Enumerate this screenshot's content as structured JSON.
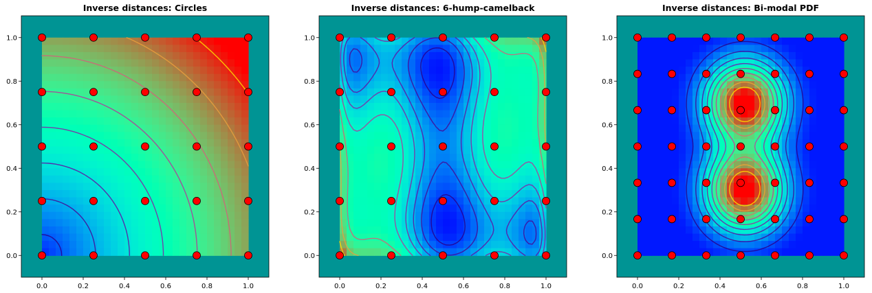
{
  "figure": {
    "background": "#ffffff",
    "frame_color": "#009494",
    "point_color": "#ff0000"
  },
  "chart_data": [
    {
      "type": "heatmap",
      "title": "Inverse distances: Circles",
      "xlim": [
        -0.1,
        1.1
      ],
      "ylim": [
        -0.1,
        1.1
      ],
      "xticks": [
        "0.0",
        "0.2",
        "0.4",
        "0.6",
        "0.8",
        "1.0"
      ],
      "yticks": [
        "0.0",
        "0.2",
        "0.4",
        "0.6",
        "0.8",
        "1.0"
      ],
      "colormap": "rainbow",
      "field": "circles",
      "grid": false,
      "contour_levels": [
        0.12,
        0.24,
        0.36,
        0.48,
        0.6,
        0.72,
        0.84,
        0.96
      ],
      "sample_points": {
        "x": [
          0.0,
          0.25,
          0.5,
          0.75,
          1.0
        ],
        "y": [
          0.0,
          0.25,
          0.5,
          0.75,
          1.0
        ]
      }
    },
    {
      "type": "heatmap",
      "title": "Inverse distances: 6-hump-camelback",
      "xlim": [
        -0.1,
        1.1
      ],
      "ylim": [
        -0.1,
        1.1
      ],
      "xticks": [
        "0.0",
        "0.2",
        "0.4",
        "0.6",
        "0.8",
        "1.0"
      ],
      "yticks": [
        "0.0",
        "0.2",
        "0.4",
        "0.6",
        "0.8",
        "1.0"
      ],
      "colormap": "rainbow",
      "field": "camelback",
      "grid": false,
      "contour_levels": [
        0.08,
        0.16,
        0.24,
        0.32,
        0.42,
        0.55,
        0.7,
        0.85
      ],
      "sample_points": {
        "x": [
          0.0,
          0.25,
          0.5,
          0.75,
          1.0
        ],
        "y": [
          0.0,
          0.25,
          0.5,
          0.75,
          1.0
        ]
      }
    },
    {
      "type": "heatmap",
      "title": "Inverse distances: Bi-modal PDF",
      "xlim": [
        -0.1,
        1.1
      ],
      "ylim": [
        -0.1,
        1.1
      ],
      "xticks": [
        "0.0",
        "0.2",
        "0.4",
        "0.6",
        "0.8",
        "1.0"
      ],
      "yticks": [
        "0.0",
        "0.2",
        "0.4",
        "0.6",
        "0.8",
        "1.0"
      ],
      "colormap": "rainbow",
      "field": "bimodal",
      "grid": false,
      "contour_levels": [
        0.1,
        0.2,
        0.3,
        0.4,
        0.5,
        0.6,
        0.7,
        0.8,
        0.9
      ],
      "sample_points": {
        "x": [
          0.0,
          0.1667,
          0.3333,
          0.5,
          0.6667,
          0.8333,
          1.0
        ],
        "y": [
          0.0,
          0.1667,
          0.3333,
          0.5,
          0.6667,
          0.8333,
          1.0
        ]
      }
    }
  ]
}
